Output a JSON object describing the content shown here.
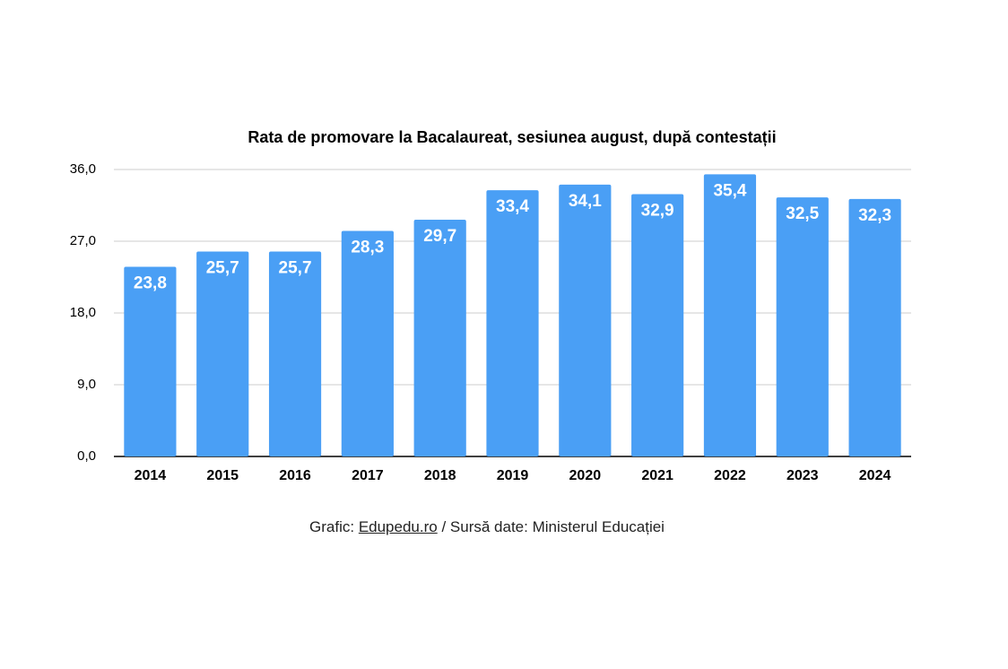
{
  "chart_data": {
    "type": "bar",
    "title": "Rata de promovare la Bacalaureat, sesiunea august, după contestații",
    "categories": [
      "2014",
      "2015",
      "2016",
      "2017",
      "2018",
      "2019",
      "2020",
      "2021",
      "2022",
      "2023",
      "2024"
    ],
    "values": [
      23.8,
      25.7,
      25.7,
      28.3,
      29.7,
      33.4,
      34.1,
      32.9,
      35.4,
      32.5,
      32.3
    ],
    "value_labels": [
      "23,8",
      "25,7",
      "25,7",
      "28,3",
      "29,7",
      "33,4",
      "34,1",
      "32,9",
      "35,4",
      "32,5",
      "32,3"
    ],
    "color": "#4a9ff5",
    "ylim": [
      0,
      36
    ],
    "yticks": [
      {
        "value": 0,
        "label": "0,0"
      },
      {
        "value": 9,
        "label": "9,0"
      },
      {
        "value": 18,
        "label": "18,0"
      },
      {
        "value": 27,
        "label": "27,0"
      },
      {
        "value": 36,
        "label": "36,0"
      }
    ],
    "grid": true,
    "source": {
      "prefix": "Grafic:",
      "link": "Edupedu.ro",
      "suffix": "/ Sursă date: Ministerul Educației"
    }
  }
}
